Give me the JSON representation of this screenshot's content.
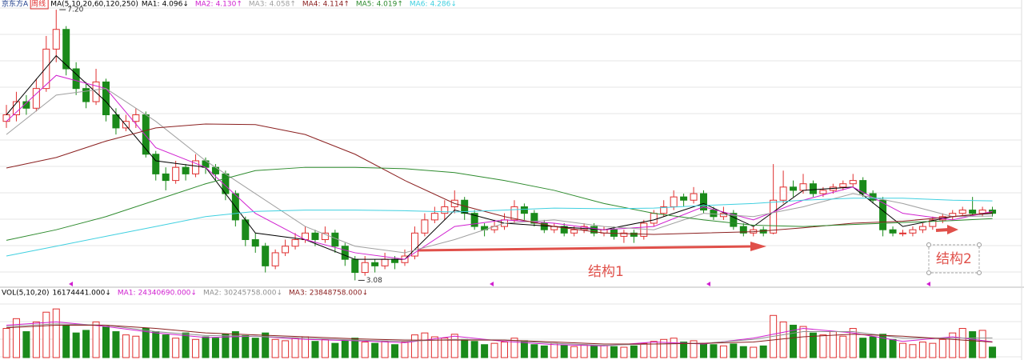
{
  "chart_data": {
    "type": "candlestick",
    "title": "京东方A",
    "period": "周线",
    "ma_title": "MA(5,10,20,60,120,250)",
    "ylim": [
      3.0,
      7.25
    ],
    "candles": [
      [
        5.5,
        5.75,
        5.4,
        5.6
      ],
      [
        5.6,
        5.95,
        5.5,
        5.8
      ],
      [
        5.8,
        5.9,
        5.6,
        5.7
      ],
      [
        5.7,
        6.15,
        5.65,
        6.0
      ],
      [
        6.0,
        6.8,
        5.95,
        6.6
      ],
      [
        6.6,
        7.2,
        6.4,
        6.9
      ],
      [
        6.9,
        6.95,
        6.2,
        6.3
      ],
      [
        6.3,
        6.4,
        5.9,
        6.0
      ],
      [
        6.0,
        6.1,
        5.7,
        5.8
      ],
      [
        5.8,
        6.3,
        5.75,
        6.1
      ],
      [
        6.1,
        6.15,
        5.5,
        5.6
      ],
      [
        5.6,
        5.7,
        5.3,
        5.4
      ],
      [
        5.4,
        5.6,
        5.35,
        5.5
      ],
      [
        5.5,
        5.7,
        5.4,
        5.6
      ],
      [
        5.6,
        5.65,
        4.95,
        5.0
      ],
      [
        5.0,
        5.05,
        4.6,
        4.7
      ],
      [
        4.7,
        4.8,
        4.45,
        4.6
      ],
      [
        4.6,
        4.9,
        4.55,
        4.8
      ],
      [
        4.8,
        4.85,
        4.6,
        4.7
      ],
      [
        4.7,
        5.0,
        4.65,
        4.9
      ],
      [
        4.9,
        4.95,
        4.7,
        4.8
      ],
      [
        4.8,
        4.85,
        4.6,
        4.7
      ],
      [
        4.7,
        4.75,
        4.3,
        4.4
      ],
      [
        4.4,
        4.45,
        3.9,
        4.0
      ],
      [
        4.0,
        4.05,
        3.6,
        3.7
      ],
      [
        3.7,
        3.8,
        3.5,
        3.6
      ],
      [
        3.6,
        3.65,
        3.2,
        3.3
      ],
      [
        3.3,
        3.55,
        3.25,
        3.5
      ],
      [
        3.5,
        3.7,
        3.45,
        3.6
      ],
      [
        3.6,
        3.8,
        3.55,
        3.7
      ],
      [
        3.7,
        3.9,
        3.65,
        3.8
      ],
      [
        3.8,
        3.85,
        3.6,
        3.7
      ],
      [
        3.7,
        3.9,
        3.65,
        3.8
      ],
      [
        3.8,
        3.85,
        3.5,
        3.6
      ],
      [
        3.6,
        3.65,
        3.3,
        3.4
      ],
      [
        3.4,
        3.45,
        3.08,
        3.2
      ],
      [
        3.2,
        3.45,
        3.15,
        3.35
      ],
      [
        3.35,
        3.4,
        3.2,
        3.3
      ],
      [
        3.3,
        3.5,
        3.25,
        3.4
      ],
      [
        3.4,
        3.45,
        3.25,
        3.35
      ],
      [
        3.35,
        3.55,
        3.3,
        3.45
      ],
      [
        3.45,
        3.9,
        3.4,
        3.8
      ],
      [
        3.8,
        4.1,
        3.75,
        4.0
      ],
      [
        4.0,
        4.2,
        3.95,
        4.1
      ],
      [
        4.1,
        4.3,
        4.0,
        4.2
      ],
      [
        4.2,
        4.45,
        4.1,
        4.3
      ],
      [
        4.3,
        4.35,
        4.0,
        4.1
      ],
      [
        4.1,
        4.15,
        3.85,
        3.9
      ],
      [
        3.9,
        3.95,
        3.75,
        3.85
      ],
      [
        3.85,
        4.0,
        3.8,
        3.9
      ],
      [
        3.9,
        4.1,
        3.85,
        4.0
      ],
      [
        4.0,
        4.3,
        3.95,
        4.2
      ],
      [
        4.2,
        4.25,
        4.0,
        4.1
      ],
      [
        4.1,
        4.15,
        3.9,
        3.95
      ],
      [
        3.95,
        4.0,
        3.8,
        3.85
      ],
      [
        3.85,
        3.95,
        3.8,
        3.9
      ],
      [
        3.9,
        3.95,
        3.75,
        3.8
      ],
      [
        3.8,
        3.9,
        3.75,
        3.85
      ],
      [
        3.85,
        3.95,
        3.8,
        3.9
      ],
      [
        3.9,
        3.95,
        3.75,
        3.8
      ],
      [
        3.8,
        3.9,
        3.75,
        3.85
      ],
      [
        3.85,
        3.9,
        3.7,
        3.75
      ],
      [
        3.75,
        3.85,
        3.65,
        3.8
      ],
      [
        3.8,
        3.85,
        3.65,
        3.75
      ],
      [
        3.75,
        4.0,
        3.7,
        3.95
      ],
      [
        3.95,
        4.15,
        3.9,
        4.1
      ],
      [
        4.1,
        4.3,
        4.05,
        4.2
      ],
      [
        4.2,
        4.45,
        4.15,
        4.35
      ],
      [
        4.35,
        4.4,
        4.2,
        4.3
      ],
      [
        4.3,
        4.5,
        4.25,
        4.4
      ],
      [
        4.4,
        4.45,
        4.1,
        4.15
      ],
      [
        4.15,
        4.2,
        4.0,
        4.05
      ],
      [
        4.05,
        4.2,
        4.0,
        4.1
      ],
      [
        4.1,
        4.15,
        3.85,
        3.9
      ],
      [
        3.9,
        3.95,
        3.75,
        3.8
      ],
      [
        3.8,
        3.9,
        3.75,
        3.85
      ],
      [
        3.85,
        3.9,
        3.75,
        3.8
      ],
      [
        3.8,
        4.85,
        3.78,
        4.3
      ],
      [
        4.3,
        4.75,
        4.25,
        4.5
      ],
      [
        4.5,
        4.6,
        4.35,
        4.45
      ],
      [
        4.45,
        4.7,
        4.4,
        4.55
      ],
      [
        4.55,
        4.6,
        4.35,
        4.4
      ],
      [
        4.4,
        4.5,
        4.35,
        4.45
      ],
      [
        4.45,
        4.55,
        4.4,
        4.5
      ],
      [
        4.5,
        4.6,
        4.45,
        4.55
      ],
      [
        4.55,
        4.7,
        4.5,
        4.6
      ],
      [
        4.6,
        4.65,
        4.35,
        4.4
      ],
      [
        4.4,
        4.45,
        4.25,
        4.3
      ],
      [
        4.3,
        4.35,
        3.75,
        3.85
      ],
      [
        3.85,
        3.9,
        3.75,
        3.8
      ],
      [
        3.8,
        3.85,
        3.75,
        3.8
      ],
      [
        3.8,
        3.9,
        3.75,
        3.85
      ],
      [
        3.85,
        3.95,
        3.8,
        3.9
      ],
      [
        3.9,
        4.05,
        3.85,
        4.0
      ],
      [
        4.0,
        4.1,
        3.95,
        4.05
      ],
      [
        4.05,
        4.15,
        4.0,
        4.1
      ],
      [
        4.1,
        4.2,
        4.05,
        4.15
      ],
      [
        4.15,
        4.35,
        4.05,
        4.1
      ],
      [
        4.1,
        4.2,
        4.05,
        4.15
      ],
      [
        4.15,
        4.2,
        4.05,
        4.1
      ]
    ],
    "ma_index": [
      0,
      5,
      10,
      15,
      20,
      25,
      30,
      35,
      40,
      45,
      50,
      55,
      60,
      65,
      70,
      75,
      80,
      85,
      90,
      95,
      99
    ],
    "series": [
      {
        "name": "MA1:",
        "label": "4.096↓",
        "color": "#000000",
        "values": [
          5.6,
          6.5,
          5.8,
          4.9,
          4.8,
          3.8,
          3.7,
          3.4,
          3.4,
          4.15,
          3.95,
          3.9,
          3.85,
          4.0,
          4.25,
          3.9,
          4.45,
          4.5,
          3.9,
          4.05,
          4.1
        ]
      },
      {
        "name": "MA2:",
        "label": "4.130↑",
        "color": "#d020d0",
        "values": [
          5.5,
          6.2,
          6.0,
          5.1,
          4.8,
          4.1,
          3.7,
          3.5,
          3.4,
          3.9,
          4.0,
          3.95,
          3.85,
          3.9,
          4.2,
          4.0,
          4.3,
          4.5,
          4.1,
          4.0,
          4.13
        ]
      },
      {
        "name": "MA3:",
        "label": "4.058↑",
        "color": "#a0a0a0",
        "values": [
          5.3,
          5.9,
          6.0,
          5.5,
          4.9,
          4.4,
          3.9,
          3.6,
          3.5,
          3.7,
          3.95,
          4.0,
          3.9,
          3.85,
          4.1,
          4.05,
          4.2,
          4.4,
          4.25,
          4.05,
          4.06
        ]
      },
      {
        "name": "MA4:",
        "label": "4.114↑",
        "color": "#8b2020",
        "values": [
          4.79,
          4.95,
          5.2,
          5.4,
          5.46,
          5.45,
          5.3,
          5.0,
          4.6,
          4.25,
          4.05,
          3.9,
          3.8,
          3.78,
          3.8,
          3.82,
          3.88,
          3.95,
          3.98,
          4.05,
          4.11
        ]
      },
      {
        "name": "MA5:",
        "label": "4.019↑",
        "color": "#2e8b2e",
        "values": [
          3.69,
          3.85,
          4.05,
          4.3,
          4.55,
          4.75,
          4.8,
          4.8,
          4.78,
          4.72,
          4.6,
          4.45,
          4.25,
          4.1,
          4.0,
          3.92,
          3.9,
          3.93,
          3.96,
          3.99,
          4.02
        ]
      },
      {
        "name": "MA6:",
        "label": "4.286↓",
        "color": "#40d0e0",
        "values": [
          3.45,
          3.6,
          3.75,
          3.9,
          4.05,
          4.13,
          4.15,
          4.15,
          4.14,
          4.12,
          4.15,
          4.18,
          4.17,
          4.18,
          4.22,
          4.25,
          4.3,
          4.33,
          4.33,
          4.3,
          4.29
        ]
      }
    ],
    "extremes": [
      {
        "value": 7.2,
        "label": "7.20"
      },
      {
        "value": 3.08,
        "label": "3.08"
      }
    ],
    "annotations": [
      "结构1",
      "结构2"
    ],
    "volume": {
      "title": "VOL(5,10,20)",
      "label": "16174441.000↓",
      "ylim": [
        0,
        90000000
      ],
      "values": [
        45000000,
        60000000,
        40000000,
        55000000,
        70000000,
        75000000,
        50000000,
        38000000,
        42000000,
        55000000,
        48000000,
        40000000,
        35000000,
        33000000,
        45000000,
        40000000,
        35000000,
        30000000,
        38000000,
        28000000,
        32000000,
        30000000,
        36000000,
        40000000,
        34000000,
        30000000,
        38000000,
        28000000,
        26000000,
        30000000,
        32000000,
        25000000,
        28000000,
        22000000,
        26000000,
        30000000,
        24000000,
        22000000,
        25000000,
        20000000,
        24000000,
        35000000,
        38000000,
        32000000,
        30000000,
        36000000,
        28000000,
        25000000,
        20000000,
        22000000,
        24000000,
        30000000,
        26000000,
        20000000,
        18000000,
        22000000,
        19000000,
        17000000,
        20000000,
        18000000,
        19000000,
        17000000,
        16000000,
        18000000,
        22000000,
        25000000,
        28000000,
        30000000,
        24000000,
        26000000,
        22000000,
        20000000,
        18000000,
        21000000,
        17000000,
        16000000,
        18000000,
        65000000,
        55000000,
        50000000,
        48000000,
        38000000,
        35000000,
        40000000,
        33000000,
        45000000,
        30000000,
        32000000,
        36000000,
        28000000,
        22000000,
        20000000,
        24000000,
        22000000,
        28000000,
        38000000,
        45000000,
        40000000,
        42000000,
        16174441
      ],
      "series": [
        {
          "name": "MA1:",
          "label": "24340690.000↓",
          "color": "#d020d0",
          "values": [
            50000000,
            55000000,
            48000000,
            38000000,
            31000000,
            33000000,
            28000000,
            26000000,
            23000000,
            33000000,
            25000000,
            20000000,
            18000000,
            24000000,
            21000000,
            30000000,
            45000000,
            38000000,
            25000000,
            32000000,
            24340690
          ]
        },
        {
          "name": "MA2:",
          "label": "30245758.000↓",
          "color": "#909090",
          "values": [
            48000000,
            52000000,
            50000000,
            40000000,
            34000000,
            33000000,
            30000000,
            27000000,
            25000000,
            28000000,
            27000000,
            22000000,
            19000000,
            21000000,
            22000000,
            28000000,
            40000000,
            40000000,
            30000000,
            30000000,
            30245758
          ]
        },
        {
          "name": "MA3:",
          "label": "23848758.000↓",
          "color": "#8b2020",
          "values": [
            46000000,
            50000000,
            50000000,
            45000000,
            38000000,
            35000000,
            32000000,
            29000000,
            27000000,
            27000000,
            27000000,
            24000000,
            21000000,
            21000000,
            22000000,
            24000000,
            32000000,
            36000000,
            33000000,
            28000000,
            23848758
          ]
        }
      ]
    }
  }
}
